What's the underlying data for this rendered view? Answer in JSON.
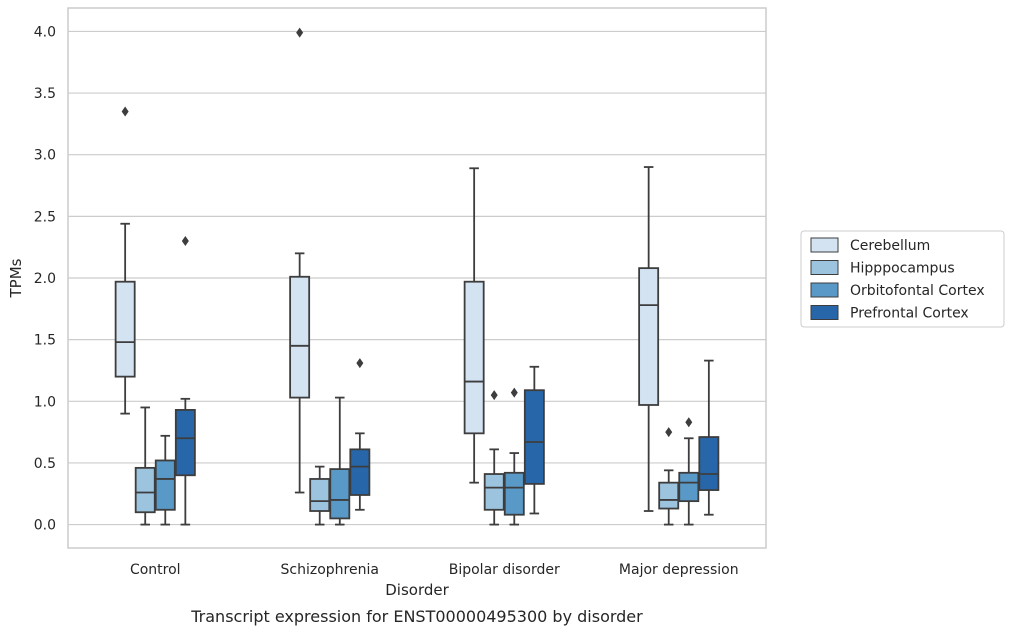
{
  "chart_data": {
    "type": "box",
    "xlabel": "Disorder",
    "ylabel": "TPMs",
    "caption": "Transcript expression for ENST00000495300 by disorder",
    "ylim": [
      -0.19,
      4.19
    ],
    "yticks": [
      "0.0",
      "0.5",
      "1.0",
      "1.5",
      "2.0",
      "2.5",
      "3.0",
      "3.5",
      "4.0"
    ],
    "grid": "horizontal",
    "legend_placement": "right",
    "categories": [
      "Control",
      "Schizophrenia",
      "Bipolar disorder",
      "Major depression"
    ],
    "series": [
      {
        "name": "Cerebellum",
        "color": "#d3e3f2",
        "boxes": [
          {
            "whislo": 0.9,
            "q1": 1.2,
            "med": 1.48,
            "q3": 1.97,
            "whishi": 2.44,
            "fliers": [
              3.35
            ]
          },
          {
            "whislo": 0.26,
            "q1": 1.03,
            "med": 1.45,
            "q3": 2.01,
            "whishi": 2.2,
            "fliers": [
              3.99
            ]
          },
          {
            "whislo": 0.34,
            "q1": 0.74,
            "med": 1.16,
            "q3": 1.97,
            "whishi": 2.89,
            "fliers": []
          },
          {
            "whislo": 0.11,
            "q1": 0.97,
            "med": 1.78,
            "q3": 2.08,
            "whishi": 2.9,
            "fliers": []
          }
        ]
      },
      {
        "name": "Hipppocampus",
        "color": "#9cc4de",
        "boxes": [
          {
            "whislo": 0.0,
            "q1": 0.1,
            "med": 0.26,
            "q3": 0.46,
            "whishi": 0.95,
            "fliers": []
          },
          {
            "whislo": 0.0,
            "q1": 0.11,
            "med": 0.19,
            "q3": 0.37,
            "whishi": 0.47,
            "fliers": []
          },
          {
            "whislo": 0.0,
            "q1": 0.12,
            "med": 0.3,
            "q3": 0.41,
            "whishi": 0.61,
            "fliers": [
              1.05
            ]
          },
          {
            "whislo": 0.0,
            "q1": 0.13,
            "med": 0.2,
            "q3": 0.34,
            "whishi": 0.44,
            "fliers": [
              0.75
            ]
          }
        ]
      },
      {
        "name": "Orbitofontal Cortex",
        "color": "#5899c8",
        "boxes": [
          {
            "whislo": 0.0,
            "q1": 0.12,
            "med": 0.37,
            "q3": 0.52,
            "whishi": 0.72,
            "fliers": []
          },
          {
            "whislo": 0.0,
            "q1": 0.05,
            "med": 0.2,
            "q3": 0.45,
            "whishi": 1.03,
            "fliers": []
          },
          {
            "whislo": 0.0,
            "q1": 0.08,
            "med": 0.3,
            "q3": 0.42,
            "whishi": 0.58,
            "fliers": [
              1.07
            ]
          },
          {
            "whislo": 0.0,
            "q1": 0.19,
            "med": 0.34,
            "q3": 0.42,
            "whishi": 0.7,
            "fliers": [
              0.83
            ]
          }
        ]
      },
      {
        "name": "Prefrontal Cortex",
        "color": "#2767a9",
        "boxes": [
          {
            "whislo": 0.0,
            "q1": 0.4,
            "med": 0.7,
            "q3": 0.93,
            "whishi": 1.02,
            "fliers": [
              2.3
            ]
          },
          {
            "whislo": 0.12,
            "q1": 0.24,
            "med": 0.47,
            "q3": 0.61,
            "whishi": 0.74,
            "fliers": [
              1.31
            ]
          },
          {
            "whislo": 0.09,
            "q1": 0.33,
            "med": 0.67,
            "q3": 1.09,
            "whishi": 1.28,
            "fliers": []
          },
          {
            "whislo": 0.08,
            "q1": 0.28,
            "med": 0.41,
            "q3": 0.71,
            "whishi": 1.33,
            "fliers": []
          }
        ]
      }
    ]
  }
}
